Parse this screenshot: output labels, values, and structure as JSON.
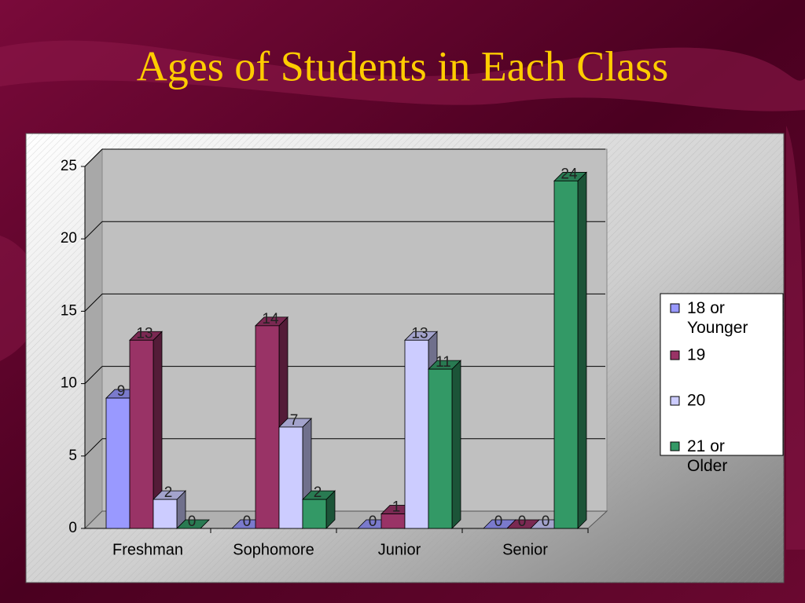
{
  "chart_data": {
    "type": "bar3d",
    "title": "Ages of Students in Each Class",
    "categories": [
      "Freshman",
      "Sophomore",
      "Junior",
      "Senior"
    ],
    "series": [
      {
        "name": "18 or Younger",
        "color": "#9999ff",
        "values": [
          9,
          0,
          0,
          0
        ]
      },
      {
        "name": "19",
        "color": "#993366",
        "values": [
          13,
          14,
          1,
          0
        ]
      },
      {
        "name": "20",
        "color": "#ccccff",
        "values": [
          2,
          7,
          13,
          0
        ]
      },
      {
        "name": "21 or Older",
        "color": "#339966",
        "values": [
          0,
          2,
          11,
          24
        ]
      }
    ],
    "ylim": [
      0,
      25
    ],
    "yticks": [
      0,
      5,
      10,
      15,
      20,
      25
    ],
    "grid": true,
    "legend": "right"
  }
}
